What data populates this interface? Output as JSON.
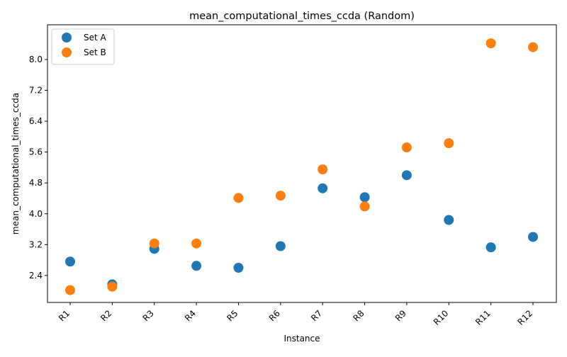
{
  "chart_data": {
    "type": "scatter",
    "title": "mean_computational_times_ccda (Random)",
    "xlabel": "Instance",
    "ylabel": "mean_computational_times_ccda",
    "categories": [
      "R1",
      "R2",
      "R3",
      "R4",
      "R5",
      "R6",
      "R7",
      "R8",
      "R9",
      "R10",
      "R11",
      "R12"
    ],
    "yticks": [
      "2.4",
      "3.2",
      "4.0",
      "4.8",
      "5.6",
      "6.4",
      "7.2",
      "8.0"
    ],
    "ylim": [
      1.7,
      8.9
    ],
    "grid": false,
    "legend_position": "top-left",
    "series": [
      {
        "name": "Set A",
        "color": "#1f77b4",
        "values": [
          2.76,
          2.17,
          3.09,
          2.65,
          2.6,
          3.16,
          4.66,
          4.43,
          5.0,
          3.84,
          3.13,
          3.4
        ]
      },
      {
        "name": "Set B",
        "color": "#ff7f0e",
        "values": [
          2.02,
          2.11,
          3.23,
          3.23,
          4.41,
          4.47,
          5.15,
          4.19,
          5.72,
          5.83,
          8.42,
          8.32
        ]
      }
    ]
  }
}
